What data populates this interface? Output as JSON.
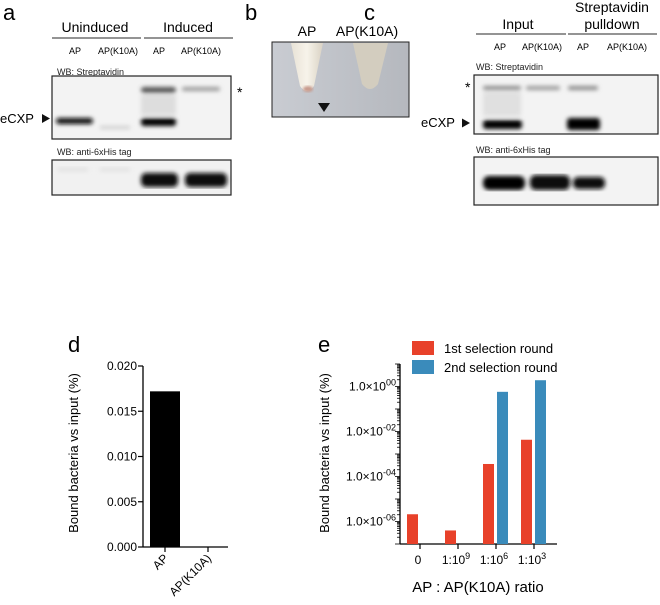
{
  "panel_a": {
    "label": "a",
    "groups": [
      "Uninduced",
      "Induced"
    ],
    "lanes": [
      "AP",
      "AP(K10A)",
      "AP",
      "AP(K10A)"
    ],
    "blot1_title": "WB: Streptavidin",
    "blot2_title": "WB: anti-6xHis tag",
    "marker": "eCXP",
    "asterisk": "*"
  },
  "panel_b": {
    "label": "b",
    "tubes": [
      "AP",
      "AP(K10A)"
    ]
  },
  "panel_c": {
    "label": "c",
    "group1": "Input",
    "group2_line1": "Streptavidin",
    "group2_line2": "pulldown",
    "lanes": [
      "AP",
      "AP(K10A)",
      "AP",
      "AP(K10A)"
    ],
    "blot1_title": "WB: Streptavidin",
    "blot2_title": "WB: anti-6xHis tag",
    "marker": "eCXP",
    "asterisk": "*"
  },
  "chart_data": [
    {
      "panel": "d",
      "type": "bar",
      "categories": [
        "AP",
        "AP(K10A)"
      ],
      "values": [
        0.0172,
        0
      ],
      "ylabel": "Bound bacteria vs input (%)",
      "xlabel": "",
      "ylim": [
        0,
        0.02
      ],
      "yticks": [
        "0.000",
        "0.005",
        "0.010",
        "0.015",
        "0.020"
      ],
      "color": "#000000",
      "grid": false
    },
    {
      "panel": "e",
      "type": "bar",
      "scale": "log",
      "categories": [
        "0",
        "1:10^9",
        "1:10^6",
        "1:10^3"
      ],
      "series": [
        {
          "name": "1st selection round",
          "color": "#e8412a",
          "values": [
            2.1e-06,
            4e-07,
            0.00036,
            0.0043
          ]
        },
        {
          "name": "2nd selection round",
          "color": "#3a8bbb",
          "values": [
            null,
            null,
            0.58,
            1.9
          ]
        }
      ],
      "ylabel": "Bound bacteria vs input (%)",
      "xlabel": "AP : AP(K10A) ratio",
      "ylim": [
        1e-07,
        10
      ],
      "yticks": [
        {
          "mant": "1.0×10",
          "exp": "-06"
        },
        {
          "mant": "1.0×10",
          "exp": "-04"
        },
        {
          "mant": "1.0×10",
          "exp": "-02"
        },
        {
          "mant": "1.0×10",
          "exp": "00"
        }
      ],
      "xticks": [
        {
          "base": "0",
          "exp": ""
        },
        {
          "base": "1:10",
          "exp": "9"
        },
        {
          "base": "1:10",
          "exp": "6"
        },
        {
          "base": "1:10",
          "exp": "3"
        }
      ],
      "legend": "top",
      "grid": false
    }
  ]
}
